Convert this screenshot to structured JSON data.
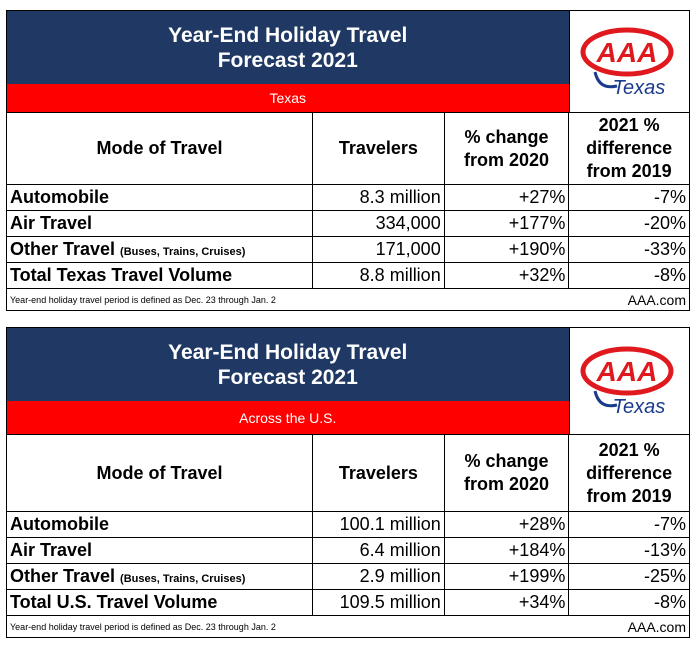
{
  "tables": [
    {
      "title_line1": "Year-End Holiday Travel",
      "title_line2": "Forecast 2021",
      "region": "Texas",
      "logo_text": "AAA",
      "logo_sub": "Texas",
      "headers": [
        "Mode of Travel",
        "Travelers",
        "% change from 2020",
        "2021 % difference from 2019"
      ],
      "rows": [
        {
          "mode": "Automobile",
          "sub": "",
          "travelers": "8.3 million",
          "change": "+27%",
          "diff": "-7%"
        },
        {
          "mode": "Air Travel",
          "sub": "",
          "travelers": "334,000",
          "change": "+177%",
          "diff": "-20%"
        },
        {
          "mode": "Other Travel",
          "sub": "(Buses, Trains, Cruises)",
          "travelers": "171,000",
          "change": "+190%",
          "diff": "-33%"
        },
        {
          "mode": "Total Texas Travel Volume",
          "sub": "",
          "travelers": "8.8 million",
          "change": "+32%",
          "diff": "-8%"
        }
      ],
      "note": "Year-end holiday travel period is defined as Dec. 23 through Jan. 2",
      "source": "AAA.com"
    },
    {
      "title_line1": "Year-End Holiday Travel",
      "title_line2": "Forecast 2021",
      "region": "Across the U.S.",
      "logo_text": "AAA",
      "logo_sub": "Texas",
      "headers": [
        "Mode of Travel",
        "Travelers",
        "% change from 2020",
        "2021 % difference from 2019"
      ],
      "rows": [
        {
          "mode": "Automobile",
          "sub": "",
          "travelers": "100.1 million",
          "change": "+28%",
          "diff": "-7%"
        },
        {
          "mode": "Air Travel",
          "sub": "",
          "travelers": "6.4 million",
          "change": "+184%",
          "diff": "-13%"
        },
        {
          "mode": "Other Travel",
          "sub": "(Buses, Trains, Cruises)",
          "travelers": "2.9 million",
          "change": "+199%",
          "diff": "-25%"
        },
        {
          "mode": "Total U.S. Travel Volume",
          "sub": "",
          "travelers": "109.5 million",
          "change": "+34%",
          "diff": "-8%"
        }
      ],
      "note": "Year-end holiday travel period is defined as Dec. 23 through Jan. 2",
      "source": "AAA.com"
    }
  ],
  "colors": {
    "title_bg": "#1f3864",
    "region_bg": "#ff0000",
    "logo_red": "#e0191f",
    "logo_blue": "#1a3a8c"
  }
}
